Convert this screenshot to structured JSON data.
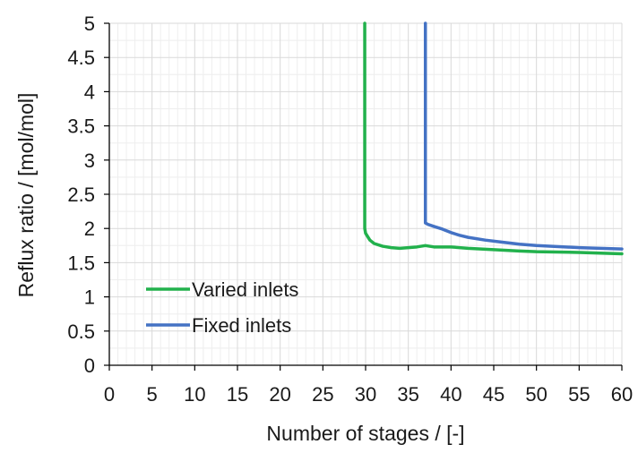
{
  "chart_data": {
    "type": "line",
    "xlabel": "Number of stages / [-]",
    "ylabel": "Reflux ratio / [mol/mol]",
    "xlim": [
      0,
      60
    ],
    "ylim": [
      0,
      5
    ],
    "x_ticks": [
      "0",
      "5",
      "10",
      "15",
      "20",
      "25",
      "30",
      "35",
      "40",
      "45",
      "50",
      "55",
      "60"
    ],
    "y_ticks": [
      "0",
      "0.5",
      "1",
      "1.5",
      "2",
      "2.5",
      "3",
      "3.5",
      "4",
      "4.5",
      "5"
    ],
    "grid": true,
    "legend_position": "bottom-left",
    "series": [
      {
        "name": "Varied inlets",
        "color": "#22b14c",
        "x": [
          29.9,
          29.9,
          30,
          30.5,
          31,
          32,
          33,
          34,
          35,
          36,
          37,
          37.5,
          38,
          39,
          40,
          42,
          45,
          48,
          50,
          55,
          60
        ],
        "y": [
          5,
          2.0,
          1.93,
          1.83,
          1.78,
          1.74,
          1.72,
          1.71,
          1.72,
          1.73,
          1.75,
          1.74,
          1.73,
          1.73,
          1.73,
          1.71,
          1.69,
          1.67,
          1.66,
          1.65,
          1.63
        ]
      },
      {
        "name": "Fixed inlets",
        "color": "#4472c4",
        "x": [
          37,
          37,
          37.3,
          38,
          39,
          40,
          41,
          42,
          44,
          46,
          48,
          50,
          55,
          60
        ],
        "y": [
          5,
          2.08,
          2.06,
          2.03,
          1.99,
          1.94,
          1.9,
          1.87,
          1.83,
          1.8,
          1.77,
          1.75,
          1.72,
          1.7
        ]
      }
    ]
  }
}
